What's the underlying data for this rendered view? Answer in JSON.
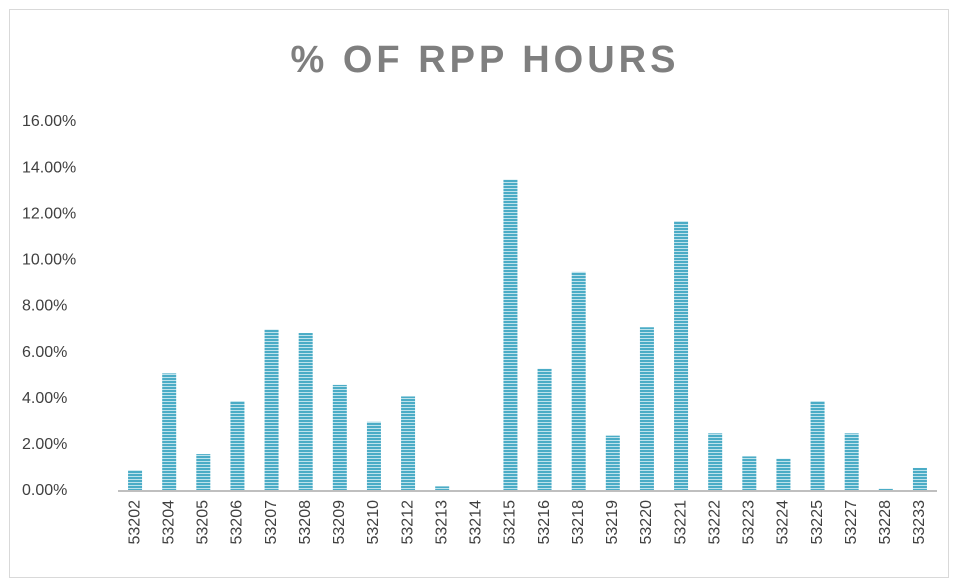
{
  "chart_data": {
    "type": "bar",
    "title": "% OF RPP HOURS",
    "categories": [
      "53202",
      "53204",
      "53205",
      "53206",
      "53207",
      "53208",
      "53209",
      "53210",
      "53212",
      "53213",
      "53214",
      "53215",
      "53216",
      "53218",
      "53219",
      "53220",
      "53221",
      "53222",
      "53223",
      "53224",
      "53225",
      "53227",
      "53228",
      "53233"
    ],
    "values": [
      0.9,
      5.1,
      1.6,
      3.9,
      7.0,
      6.85,
      4.6,
      3.0,
      4.1,
      0.2,
      0,
      13.5,
      5.3,
      9.5,
      2.4,
      7.1,
      11.7,
      2.5,
      1.5,
      1.4,
      3.9,
      2.5,
      0.1,
      1.0
    ],
    "color": "#4bacc6",
    "ylim": [
      0,
      16
    ],
    "yticks": [
      {
        "value": 0,
        "label": "0.00%"
      },
      {
        "value": 2,
        "label": "2.00%"
      },
      {
        "value": 4,
        "label": "4.00%"
      },
      {
        "value": 6,
        "label": "6.00%"
      },
      {
        "value": 8,
        "label": "8.00%"
      },
      {
        "value": 10,
        "label": "10.00%"
      },
      {
        "value": 12,
        "label": "12.00%"
      },
      {
        "value": 14,
        "label": "14.00%"
      },
      {
        "value": 16,
        "label": "16.00%"
      }
    ],
    "grid": false
  }
}
